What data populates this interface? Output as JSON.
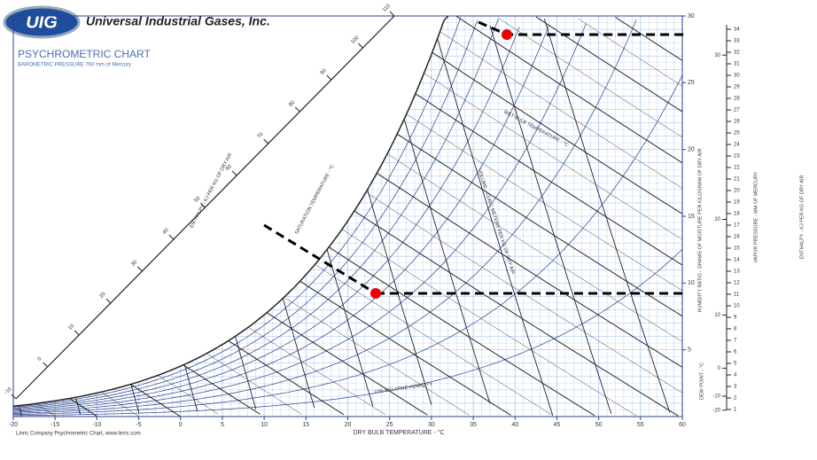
{
  "header": {
    "logo": "UIG",
    "company": "Universal Industrial Gases, Inc.",
    "title": "PSYCHROMETRIC CHART",
    "subtitle": "BAROMETRIC PRESSURE 760 mm of Mercury"
  },
  "footer": {
    "credit": "Linric Company Psychrometric Chart, www.linric.com"
  },
  "axes": {
    "x_label": "DRY BULB TEMPERATURE - °C",
    "x_ticks": [
      -20,
      -15,
      -10,
      -5,
      0,
      5,
      10,
      15,
      20,
      25,
      30,
      35,
      40,
      45,
      50,
      55,
      60
    ],
    "y_label": "HUMIDITY RATIO - GRAMS OF MOISTURE PER KILOGRAM OF DRY AIR",
    "y_ticks": [
      5,
      10,
      15,
      20,
      25,
      30
    ],
    "vapor_label": "VAPOR PRESSURE - MM OF MERCURY",
    "vapor_ticks": [
      1,
      2,
      3,
      4,
      5,
      6,
      7,
      8,
      9,
      10,
      11,
      12,
      13,
      14,
      15,
      16,
      17,
      18,
      19,
      20,
      21,
      22,
      23,
      24,
      25,
      26,
      27,
      28,
      29,
      30,
      31,
      32,
      33,
      34
    ],
    "dew_label": "DEW POINT - °C",
    "dew_ticks": [
      -20,
      -10,
      0,
      10,
      20,
      30
    ],
    "enthalpy_label": "ENTHALPY - KJ PER KG OF DRY AIR",
    "enthalpy_ticks": [
      -10,
      0,
      10,
      20,
      30,
      40,
      50,
      60,
      70,
      80,
      90,
      100,
      110
    ]
  },
  "annotations": {
    "wet_bulb": "WET BULB TEMPERATURE - °C",
    "rh": "10% RELATIVE HUMIDITY",
    "saturation": "SATURATION TEMPERATURE - °C",
    "volume": "VOLUME - CUBIC METERS PER KG OF DRY AIR"
  }
}
